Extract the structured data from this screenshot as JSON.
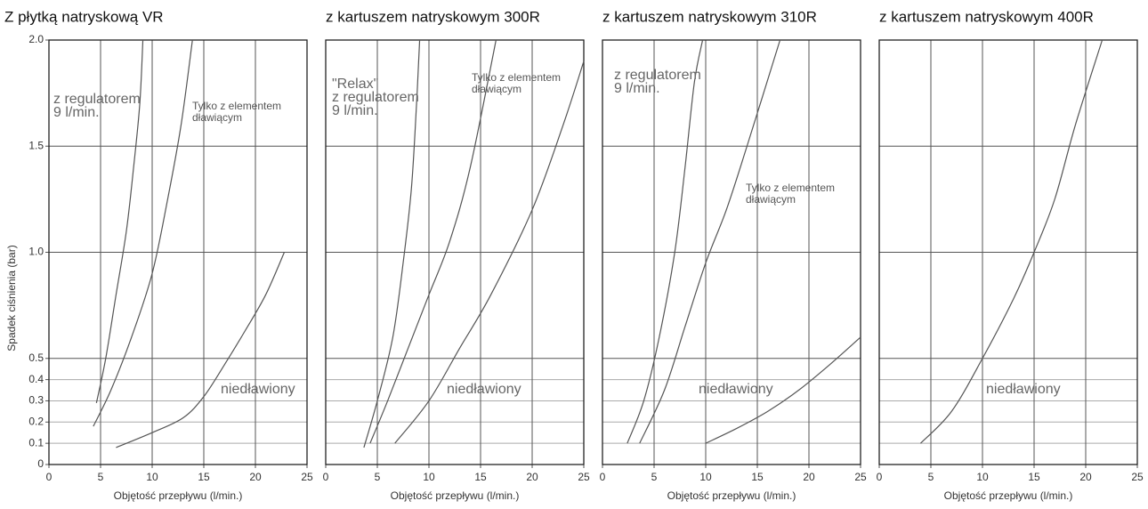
{
  "chart_data": [
    {
      "type": "line",
      "title": "Z płytką natryskową VR",
      "xlabel": "Objętość przepływu (l/min.)",
      "ylabel": "Spadek ciśnienia (bar)",
      "show_yticklabels": true,
      "grid": true,
      "xlim": [
        0,
        25
      ],
      "ylim": [
        0,
        2
      ],
      "xticks": [
        0,
        5,
        10,
        15,
        20,
        25
      ],
      "yticks": [
        0,
        0.1,
        0.2,
        0.3,
        0.4,
        0.5,
        {
          "value": 1,
          "label": "1.0"
        },
        1.5,
        {
          "value": 2,
          "label": "2.0"
        }
      ],
      "series": [
        {
          "color": "#555555",
          "x": [
            4.6,
            5.5,
            6.5,
            7.5,
            8.2,
            8.8,
            9.1
          ],
          "values": [
            0.29,
            0.5,
            0.8,
            1.1,
            1.4,
            1.7,
            2.0
          ]
        },
        {
          "color": "#555555",
          "x": [
            4.3,
            6,
            8,
            10,
            11.5,
            12.8,
            13.9
          ],
          "values": [
            0.18,
            0.35,
            0.6,
            0.9,
            1.25,
            1.6,
            2.0
          ]
        },
        {
          "color": "#555555",
          "x": [
            6.5,
            10,
            13,
            15,
            17,
            19,
            21,
            22.8
          ],
          "values": [
            0.08,
            0.15,
            0.22,
            0.32,
            0.47,
            0.63,
            0.8,
            1.0
          ]
        }
      ],
      "annotations": [
        {
          "text": [
            "z regulatorem",
            "9 l/min."
          ]
        },
        {
          "text": [
            "Tylko z elementem",
            "dławiącym"
          ]
        },
        {
          "text": [
            "niedławiony"
          ]
        }
      ]
    },
    {
      "type": "line",
      "title": "z kartuszem natryskowym 300R",
      "xlabel": "Objętość przepływu (l/min.)",
      "show_yticklabels": false,
      "grid": true,
      "xlim": [
        0,
        25
      ],
      "ylim": [
        0,
        2
      ],
      "xticks": [
        0,
        5,
        10,
        15,
        20,
        25
      ],
      "yticks": [
        0,
        0.1,
        0.2,
        0.3,
        0.4,
        0.5,
        1,
        1.5,
        2
      ],
      "series": [
        {
          "color": "#555555",
          "x": [
            3.7,
            5,
            6.5,
            7.5,
            8.3,
            8.8,
            9.1
          ],
          "values": [
            0.08,
            0.3,
            0.6,
            0.95,
            1.3,
            1.7,
            2.0
          ]
        },
        {
          "color": "#555555",
          "x": [
            4.3,
            6,
            8,
            10,
            12,
            14,
            16.5
          ],
          "values": [
            0.1,
            0.3,
            0.55,
            0.8,
            1.05,
            1.4,
            2.0
          ]
        },
        {
          "color": "#555555",
          "x": [
            6.7,
            10,
            13,
            16,
            20,
            23,
            25
          ],
          "values": [
            0.1,
            0.3,
            0.55,
            0.8,
            1.2,
            1.6,
            1.9
          ]
        }
      ],
      "annotations": [
        {
          "text": [
            "\"Relax\"",
            "z regulatorem",
            "9 l/min."
          ]
        },
        {
          "text": [
            "Tylko z elementem",
            "dławiącym"
          ]
        },
        {
          "text": [
            "niedławiony"
          ]
        }
      ]
    },
    {
      "type": "line",
      "title": "z kartuszem natryskowym 310R",
      "xlabel": "Objętość przepływu (l/min.)",
      "show_yticklabels": false,
      "grid": true,
      "xlim": [
        0,
        25
      ],
      "ylim": [
        0,
        2
      ],
      "xticks": [
        0,
        5,
        10,
        15,
        20,
        25
      ],
      "yticks": [
        0,
        0.1,
        0.2,
        0.3,
        0.4,
        0.5,
        1,
        1.5,
        2
      ],
      "series": [
        {
          "color": "#555555",
          "x": [
            2.4,
            4,
            5.5,
            7,
            8,
            8.9,
            9.7
          ],
          "values": [
            0.1,
            0.3,
            0.6,
            1.0,
            1.4,
            1.8,
            2.0
          ]
        },
        {
          "color": "#555555",
          "x": [
            3.6,
            6,
            8,
            10,
            12,
            14,
            17.2
          ],
          "values": [
            0.1,
            0.35,
            0.65,
            0.95,
            1.2,
            1.5,
            2.0
          ]
        },
        {
          "color": "#555555",
          "x": [
            10,
            13,
            16,
            19,
            22,
            25
          ],
          "values": [
            0.1,
            0.17,
            0.25,
            0.35,
            0.47,
            0.6
          ]
        }
      ],
      "annotations": [
        {
          "text": [
            "z regulatorem",
            "9 l/min."
          ]
        },
        {
          "text": [
            "Tylko z elementem",
            "dławiącym"
          ]
        },
        {
          "text": [
            "niedławiony"
          ]
        }
      ]
    },
    {
      "type": "line",
      "title": "z kartuszem natryskowym 400R",
      "xlabel": "Objętość przepływu (l/min.)",
      "show_yticklabels": false,
      "grid": true,
      "xlim": [
        0,
        25
      ],
      "ylim": [
        0,
        2
      ],
      "xticks": [
        0,
        5,
        10,
        15,
        20,
        25
      ],
      "yticks": [
        0,
        0.1,
        0.2,
        0.3,
        0.4,
        0.5,
        1,
        1.5,
        2
      ],
      "series": [
        {
          "color": "#555555",
          "x": [
            4,
            7,
            10,
            13,
            15,
            17,
            19,
            21.6
          ],
          "values": [
            0.1,
            0.25,
            0.5,
            0.78,
            1.0,
            1.25,
            1.6,
            2.0
          ]
        }
      ],
      "annotations": [
        {
          "text": [
            "niedławiony"
          ]
        }
      ]
    }
  ]
}
